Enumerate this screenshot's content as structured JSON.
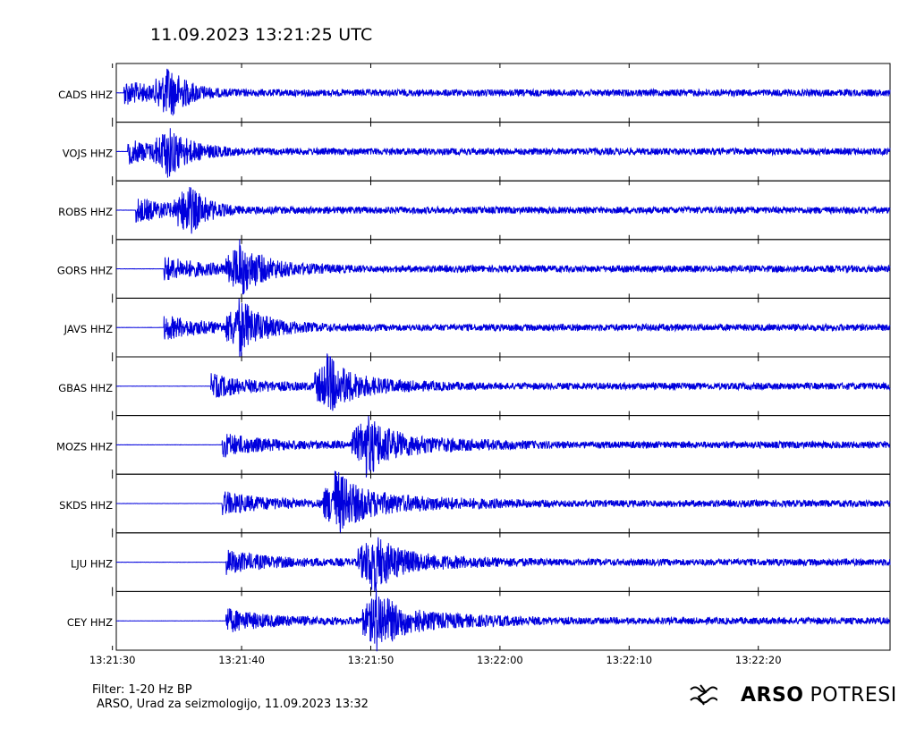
{
  "header": {
    "title": "11.09.2023  13:21:25 UTC"
  },
  "chart_data": {
    "type": "line",
    "title": "11.09.2023  13:21:25 UTC",
    "xlabel": "",
    "ylabel": "",
    "x_range": [
      "13:21:25.3",
      "13:22:25.2"
    ],
    "x_ticks": [
      "13:21:30",
      "13:21:40",
      "13:21:50",
      "13:22:00",
      "13:22:10",
      "13:22:20"
    ],
    "line_color": "#0000dd",
    "traces": [
      {
        "name": "CADS HHZ",
        "arrival_s": 5.9,
        "peak_s": 9.3,
        "amp": 0.9,
        "coda": 0.12
      },
      {
        "name": "VOJS HHZ",
        "arrival_s": 6.2,
        "peak_s": 9.2,
        "amp": 0.85,
        "coda": 0.18
      },
      {
        "name": "ROBS HHZ",
        "arrival_s": 6.8,
        "peak_s": 10.8,
        "amp": 0.9,
        "coda": 0.1
      },
      {
        "name": "GORS HHZ",
        "arrival_s": 9.0,
        "peak_s": 14.8,
        "amp": 0.85,
        "coda": 0.25
      },
      {
        "name": "JAVS HHZ",
        "arrival_s": 9.0,
        "peak_s": 14.8,
        "amp": 0.9,
        "coda": 0.22
      },
      {
        "name": "GBAS HHZ",
        "arrival_s": 12.6,
        "peak_s": 21.6,
        "amp": 0.9,
        "coda": 0.3
      },
      {
        "name": "MOZS HHZ",
        "arrival_s": 13.5,
        "peak_s": 24.5,
        "amp": 0.9,
        "coda": 0.38
      },
      {
        "name": "SKDS HHZ",
        "arrival_s": 13.5,
        "peak_s": 22.2,
        "amp": 0.9,
        "coda": 0.42
      },
      {
        "name": "LJU HHZ",
        "arrival_s": 13.8,
        "peak_s": 25.0,
        "amp": 0.9,
        "coda": 0.35
      },
      {
        "name": "CEY HHZ",
        "arrival_s": 13.8,
        "peak_s": 25.3,
        "amp": 0.9,
        "coda": 0.38
      }
    ]
  },
  "footer": {
    "filter": "Filter: 1-20 Hz BP",
    "source": "ARSO, Urad za seizmologijo, 11.09.2023  13:32"
  },
  "brand": {
    "logo_icon": "seismograph-logo-icon",
    "part1": "ARSO",
    "part2": "POTRESI"
  }
}
